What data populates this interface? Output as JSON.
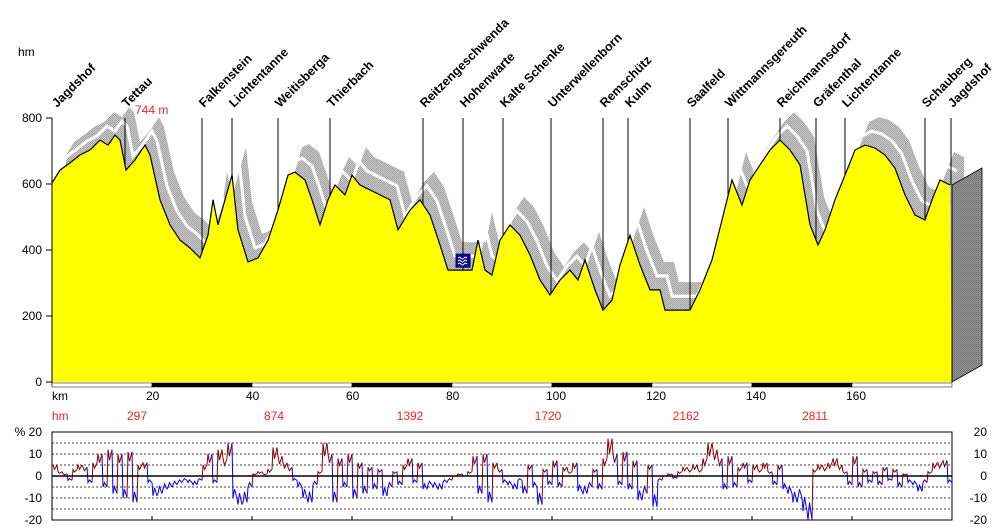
{
  "chart_data": [
    {
      "type": "area",
      "title": "",
      "ylabel": "hm",
      "xlabel": "km",
      "ylim": [
        0,
        800
      ],
      "xlim": [
        0,
        180
      ],
      "yticks": [
        "800",
        "600",
        "400",
        "200",
        "0"
      ],
      "xticks": [
        {
          "km": 20,
          "label": "20"
        },
        {
          "km": 40,
          "label": "40"
        },
        {
          "km": 60,
          "label": "60"
        },
        {
          "km": 80,
          "label": "80"
        },
        {
          "km": 100,
          "label": "100"
        },
        {
          "km": 120,
          "label": "120"
        },
        {
          "km": 140,
          "label": "140"
        },
        {
          "km": 160,
          "label": "160"
        }
      ],
      "max_label": {
        "text": "744 m",
        "km": 15
      },
      "colors": {
        "fill": "#ffff00",
        "shadow": "#bdbdbd",
        "side": "#8a8a8a",
        "climb_text": "#ff2020"
      },
      "climb_label": "hm",
      "cumulative_climb": [
        {
          "km": 17,
          "value": "297"
        },
        {
          "km": 44.4,
          "value": "874"
        },
        {
          "km": 71.6,
          "value": "1392"
        },
        {
          "km": 99.2,
          "value": "1720"
        },
        {
          "km": 126.8,
          "value": "2162"
        },
        {
          "km": 152.6,
          "value": "2811"
        }
      ],
      "places": [
        {
          "name": "Jagdshof",
          "km": 0.6,
          "line": false
        },
        {
          "name": "Tettau",
          "km": 14.6,
          "line": true
        },
        {
          "name": "Falkenstein",
          "km": 30,
          "line": true
        },
        {
          "name": "Lichtentanne",
          "km": 36,
          "line": true
        },
        {
          "name": "Weitisberga",
          "km": 45.2,
          "line": true
        },
        {
          "name": "Thierbach",
          "km": 55.6,
          "line": true
        },
        {
          "name": "Reitzengeschwenda",
          "km": 74.2,
          "line": true
        },
        {
          "name": "Hohenwarte",
          "km": 82.2,
          "line": true
        },
        {
          "name": "Kalte Schenke",
          "km": 90.2,
          "line": true
        },
        {
          "name": "Unterwellenborn",
          "km": 99.8,
          "line": true
        },
        {
          "name": "Remschütz",
          "km": 110.2,
          "line": true
        },
        {
          "name": "Kulm",
          "km": 115.2,
          "line": true
        },
        {
          "name": "Saalfeld",
          "km": 127.6,
          "line": true
        },
        {
          "name": "Wittmannsgereuth",
          "km": 135.2,
          "line": true
        },
        {
          "name": "Reichmannsdorf",
          "km": 145.6,
          "line": true
        },
        {
          "name": "Gräfenthal",
          "km": 152.8,
          "line": true
        },
        {
          "name": "Lichtentanne",
          "km": 158.6,
          "line": true
        },
        {
          "name": "Schauberg",
          "km": 174.6,
          "line": true
        },
        {
          "name": "Jagdshof",
          "km": 179.8,
          "line": true
        }
      ],
      "water_icon_km": 82.2,
      "profile": [
        [
          0,
          603
        ],
        [
          1.6,
          642
        ],
        [
          3.6,
          664
        ],
        [
          5.6,
          688
        ],
        [
          7.6,
          703
        ],
        [
          9.6,
          733
        ],
        [
          11.2,
          718
        ],
        [
          12.6,
          748
        ],
        [
          13.6,
          733
        ],
        [
          14.8,
          642
        ],
        [
          16.6,
          673
        ],
        [
          18.6,
          718
        ],
        [
          19.6,
          688
        ],
        [
          21.6,
          552
        ],
        [
          23.6,
          476
        ],
        [
          25.6,
          430
        ],
        [
          27.6,
          406
        ],
        [
          29.6,
          376
        ],
        [
          31.2,
          445
        ],
        [
          32.2,
          552
        ],
        [
          33.2,
          476
        ],
        [
          34.6,
          552
        ],
        [
          36,
          627
        ],
        [
          37.2,
          461
        ],
        [
          39.2,
          364
        ],
        [
          41.2,
          376
        ],
        [
          43.2,
          430
        ],
        [
          45.2,
          521
        ],
        [
          47.2,
          627
        ],
        [
          48.6,
          636
        ],
        [
          50.6,
          612
        ],
        [
          52,
          552
        ],
        [
          53.6,
          476
        ],
        [
          55.2,
          552
        ],
        [
          56.6,
          597
        ],
        [
          58.6,
          567
        ],
        [
          60,
          627
        ],
        [
          61.6,
          597
        ],
        [
          63.6,
          582
        ],
        [
          65.6,
          567
        ],
        [
          67.6,
          552
        ],
        [
          69.2,
          461
        ],
        [
          71.6,
          521
        ],
        [
          73.6,
          552
        ],
        [
          75.6,
          506
        ],
        [
          77.6,
          415
        ],
        [
          79.2,
          339
        ],
        [
          84,
          339
        ],
        [
          85.2,
          430
        ],
        [
          86.6,
          339
        ],
        [
          88,
          324
        ],
        [
          89.6,
          430
        ],
        [
          91.6,
          476
        ],
        [
          93.6,
          445
        ],
        [
          95.6,
          385
        ],
        [
          97.6,
          309
        ],
        [
          99.6,
          264
        ],
        [
          101.6,
          309
        ],
        [
          103.6,
          339
        ],
        [
          105.2,
          309
        ],
        [
          106.6,
          370
        ],
        [
          108.6,
          279
        ],
        [
          110.2,
          218
        ],
        [
          112,
          248
        ],
        [
          113.6,
          355
        ],
        [
          115.6,
          445
        ],
        [
          117.6,
          355
        ],
        [
          119.6,
          279
        ],
        [
          121.6,
          279
        ],
        [
          122.6,
          218
        ],
        [
          127.6,
          218
        ],
        [
          129.6,
          279
        ],
        [
          132,
          370
        ],
        [
          134,
          491
        ],
        [
          136,
          612
        ],
        [
          138,
          536
        ],
        [
          139.6,
          612
        ],
        [
          141.6,
          658
        ],
        [
          143.6,
          703
        ],
        [
          145.6,
          733
        ],
        [
          147.6,
          703
        ],
        [
          149.6,
          658
        ],
        [
          151.6,
          476
        ],
        [
          153.2,
          415
        ],
        [
          154.6,
          461
        ],
        [
          156.6,
          552
        ],
        [
          158.6,
          627
        ],
        [
          160.6,
          703
        ],
        [
          162.6,
          718
        ],
        [
          164.6,
          709
        ],
        [
          166.6,
          688
        ],
        [
          168.6,
          648
        ],
        [
          170.6,
          567
        ],
        [
          172.6,
          506
        ],
        [
          174.6,
          491
        ],
        [
          176,
          552
        ],
        [
          177.6,
          612
        ],
        [
          179.6,
          597
        ]
      ]
    },
    {
      "type": "line",
      "title": "",
      "ylabel": "%",
      "ylim": [
        -20,
        20
      ],
      "yticks_left": [
        "% 20",
        "10",
        "0",
        "-10",
        "-20"
      ],
      "yticks_right": [
        "20",
        "10",
        "0",
        "-10",
        "-20"
      ],
      "grid": true,
      "colors": {
        "up": "#8b0000",
        "down": "#0000ff"
      },
      "km_step": 1,
      "gradient": [
        5,
        2,
        1,
        -2,
        3,
        5,
        4,
        -3,
        6,
        10,
        -5,
        12,
        -8,
        10,
        -10,
        11,
        -12,
        5,
        6,
        -3,
        -9,
        -8,
        -6,
        -5,
        -4,
        -3,
        -2,
        -3,
        -4,
        -2,
        5,
        10,
        -3,
        12,
        8,
        15,
        -10,
        -13,
        -12,
        -5,
        1,
        2,
        1,
        3,
        13,
        9,
        6,
        4,
        -2,
        -5,
        -10,
        -12,
        -4,
        2,
        15,
        10,
        -12,
        8,
        -5,
        10,
        -10,
        6,
        -8,
        4,
        -6,
        3,
        -9,
        -5,
        2,
        -4,
        5,
        8,
        -3,
        6,
        -6,
        -4,
        -5,
        -6,
        -3,
        -2,
        0,
        1,
        0,
        2,
        9,
        -8,
        10,
        -12,
        6,
        3,
        -3,
        -4,
        -6,
        -2,
        -8,
        5,
        -5,
        -13,
        3,
        -4,
        7,
        -5,
        4,
        2,
        6,
        -7,
        -8,
        -5,
        3,
        -6,
        8,
        17,
        10,
        -4,
        11,
        -6,
        7,
        -11,
        -8,
        5,
        -14,
        -2,
        0,
        1,
        -1,
        2,
        4,
        3,
        5,
        3,
        8,
        15,
        12,
        8,
        -6,
        9,
        -5,
        4,
        6,
        -3,
        5,
        3,
        6,
        2,
        -4,
        5,
        -6,
        -8,
        -12,
        -10,
        -16,
        -20,
        3,
        5,
        4,
        6,
        8,
        5,
        2,
        -4,
        9,
        -5,
        3,
        -3,
        2,
        -4,
        4,
        -2,
        3,
        -5,
        1,
        -3,
        -4,
        -7,
        -3,
        2,
        6,
        6,
        7,
        -3
      ]
    }
  ]
}
